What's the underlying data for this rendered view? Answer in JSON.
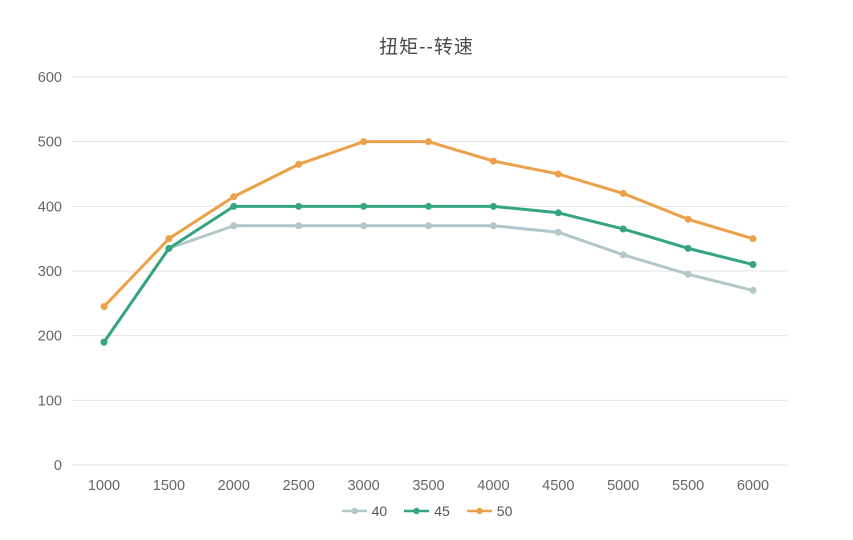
{
  "title": "扭矩--转速",
  "chart_data": {
    "type": "line",
    "title": "扭矩--转速",
    "xlabel": "",
    "ylabel": "",
    "categories": [
      "1000",
      "1500",
      "2000",
      "2500",
      "3000",
      "3500",
      "4000",
      "4500",
      "5000",
      "5500",
      "6000"
    ],
    "series": [
      {
        "name": "40",
        "color": "#B2C7CA",
        "values": [
          190,
          335,
          370,
          370,
          370,
          370,
          370,
          360,
          325,
          295,
          270
        ]
      },
      {
        "name": "45",
        "color": "#34A57F",
        "values": [
          190,
          335,
          400,
          400,
          400,
          400,
          400,
          390,
          365,
          335,
          310
        ]
      },
      {
        "name": "50",
        "color": "#ECA04A",
        "values": [
          245,
          350,
          415,
          465,
          500,
          500,
          470,
          450,
          420,
          380,
          350
        ]
      }
    ],
    "ylim": [
      0,
      600
    ],
    "yticks": [
      0,
      100,
      200,
      300,
      400,
      500,
      600
    ],
    "grid": true,
    "legend_position": "bottom"
  },
  "colors": {
    "background": "#FFFFFF",
    "grid_line": "#E3E3E3",
    "title_text": "#4A4A4A",
    "axis_label": "#666666",
    "legend_text": "#555555"
  }
}
